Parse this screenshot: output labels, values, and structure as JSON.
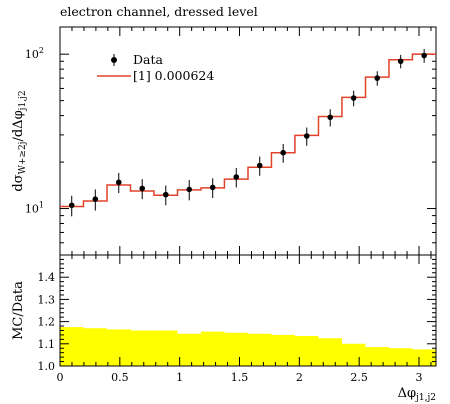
{
  "chart_data": {
    "type": "line",
    "title": "electron channel, dressed level",
    "upper": {
      "ylabel": "dσ_{W+≥2j}/dΔφ_{j1,j2}",
      "ylabel_parts": {
        "main": "dσ",
        "sub1": "W+≥2j",
        "mid": "/dΔφ",
        "sub2": "j1,j2"
      },
      "yscale": "log",
      "ylim": [
        5,
        150
      ],
      "yticks": [
        {
          "value": 10,
          "base": "10",
          "exp": "1"
        },
        {
          "value": 100,
          "base": "10",
          "exp": "2"
        }
      ],
      "bin_edges": [
        0.0,
        0.196,
        0.393,
        0.589,
        0.785,
        0.982,
        1.178,
        1.374,
        1.571,
        1.767,
        1.963,
        2.16,
        2.356,
        2.553,
        2.749,
        2.945,
        3.142
      ],
      "series": [
        {
          "name": "Data",
          "marker": "point-with-error",
          "color": "#000000",
          "x": [
            0.098,
            0.295,
            0.491,
            0.687,
            0.884,
            1.08,
            1.276,
            1.473,
            1.669,
            1.865,
            2.062,
            2.258,
            2.454,
            2.651,
            2.847,
            3.043
          ],
          "y": [
            10.5,
            11.5,
            14.8,
            13.5,
            12.3,
            13.3,
            13.7,
            16.0,
            19.0,
            23.0,
            29.5,
            39.0,
            52.0,
            70.0,
            90.0,
            98.0
          ],
          "yerr": [
            1.6,
            1.8,
            2.2,
            2.0,
            1.8,
            2.0,
            2.0,
            2.3,
            2.7,
            3.2,
            4.0,
            5.0,
            6.0,
            7.5,
            9.0,
            10.0
          ]
        },
        {
          "name": "[1] 0.000624",
          "marker": "step",
          "color": "#e0422a",
          "y": [
            10.3,
            11.2,
            14.2,
            13.0,
            12.2,
            13.2,
            13.6,
            15.5,
            18.5,
            23.0,
            29.8,
            39.5,
            52.5,
            71.0,
            92.0,
            100.0
          ]
        }
      ]
    },
    "lower": {
      "ylabel": "MC/Data",
      "ylim": [
        1.0,
        1.5
      ],
      "yticks": [
        "1.0",
        "1.1",
        "1.2",
        "1.3",
        "1.4"
      ],
      "yticks_values": [
        1.0,
        1.1,
        1.2,
        1.3,
        1.4
      ],
      "band_color": "#ffff00",
      "band_upper": [
        1.175,
        1.17,
        1.165,
        1.16,
        1.16,
        1.145,
        1.155,
        1.15,
        1.145,
        1.14,
        1.135,
        1.125,
        1.1,
        1.085,
        1.08,
        1.075
      ],
      "band_lower": [
        1.0,
        1.0,
        1.0,
        1.0,
        1.0,
        1.0,
        1.0,
        1.0,
        1.0,
        1.0,
        1.0,
        1.0,
        1.0,
        1.0,
        1.0,
        1.0
      ]
    },
    "xlim": [
      0,
      3.142
    ],
    "xticks": [
      "0",
      "0.5",
      "1",
      "1.5",
      "2",
      "2.5",
      "3"
    ],
    "xticks_values": [
      0,
      0.5,
      1,
      1.5,
      2,
      2.5,
      3
    ],
    "xlabel": "Δφ_{j1,j2}",
    "xlabel_parts": {
      "main": "Δφ",
      "sub": "j1,j2"
    },
    "legend_position": "top-left"
  }
}
